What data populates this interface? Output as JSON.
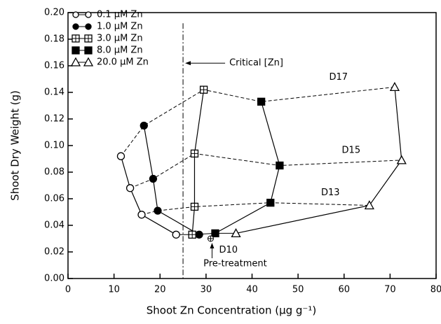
{
  "chart_data": {
    "type": "line",
    "x_label": "Shoot Zn Concentration (µg g⁻¹)",
    "y_label": "Shoot Dry Weight (g)",
    "xlim": [
      0,
      80
    ],
    "xticks": [
      0,
      10,
      20,
      30,
      40,
      50,
      60,
      70,
      80
    ],
    "ylim": [
      0,
      0.2
    ],
    "yticks": [
      {
        "value": 0,
        "label": "0.00"
      },
      {
        "value": 0.02,
        "label": "0.02"
      },
      {
        "value": 0.04,
        "label": "0.04"
      },
      {
        "value": 0.06,
        "label": "0.06"
      },
      {
        "value": 0.08,
        "label": "0.08"
      },
      {
        "value": 0.1,
        "label": "0.10"
      },
      {
        "value": 0.12,
        "label": "0.12"
      },
      {
        "value": 0.14,
        "label": "0.14"
      },
      {
        "value": 0.16,
        "label": "0.16"
      },
      {
        "value": 0.18,
        "label": "0.18"
      },
      {
        "value": 0.2,
        "label": "0.20"
      }
    ],
    "days": [
      "D10",
      "D13",
      "D15",
      "D17"
    ],
    "series": [
      {
        "name": "0.1 µM Zn",
        "marker": "open-circle",
        "color": "#000",
        "x": [
          23.5,
          16,
          13.5,
          11.5
        ],
        "y": [
          0.033,
          0.048,
          0.068,
          0.092
        ]
      },
      {
        "name": "1.0 µM Zn",
        "marker": "filled-circle",
        "color": "#000",
        "x": [
          28.5,
          19.5,
          18.5,
          16.5
        ],
        "y": [
          0.033,
          0.051,
          0.075,
          0.115
        ]
      },
      {
        "name": "3.0 µM Zn",
        "marker": "crossed-square",
        "color": "#000",
        "x": [
          27,
          27.5,
          27.5,
          29.5
        ],
        "y": [
          0.033,
          0.054,
          0.094,
          0.142
        ]
      },
      {
        "name": "8.0 µM Zn",
        "marker": "filled-square",
        "color": "#000",
        "x": [
          32,
          44,
          46,
          42
        ],
        "y": [
          0.034,
          0.057,
          0.085,
          0.133
        ]
      },
      {
        "name": "20.0 µM Zn",
        "marker": "open-triangle",
        "color": "#000",
        "x": [
          36.5,
          65.5,
          72.5,
          71
        ],
        "y": [
          0.034,
          0.055,
          0.089,
          0.144
        ]
      }
    ],
    "pretreatment": {
      "label": "Pre-treatment",
      "x": 31,
      "y": 0.03
    },
    "critical": {
      "label": "Critical [Zn]",
      "x": 25
    }
  }
}
